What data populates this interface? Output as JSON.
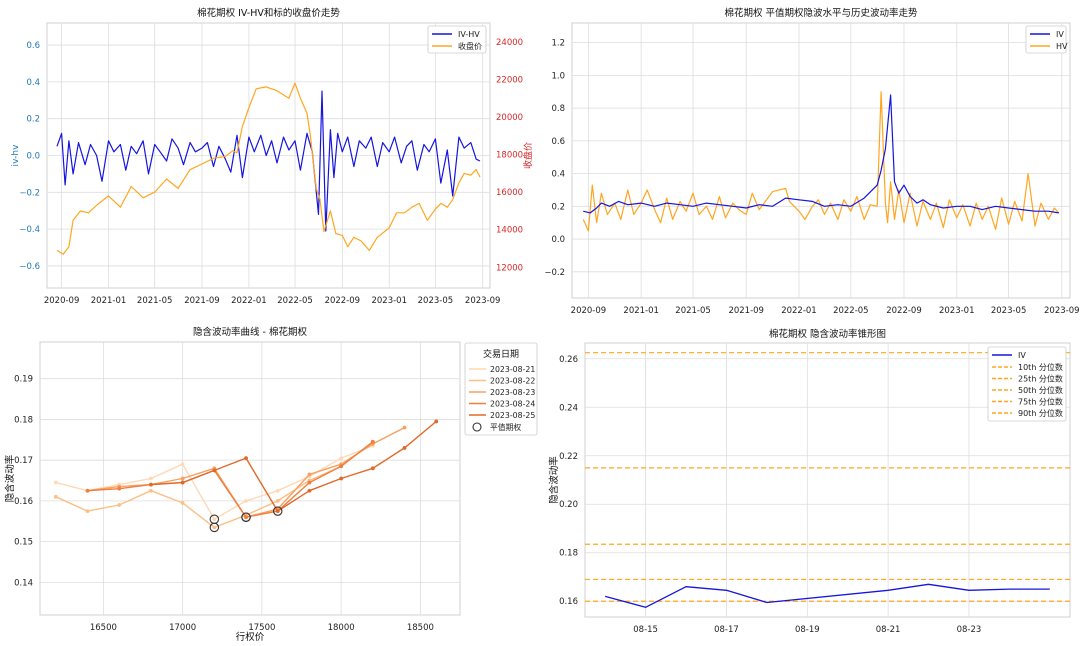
{
  "chart_data": [
    {
      "type": "line",
      "title": "棉花期权 IV-HV和标的收盘价走势",
      "xlabel": "",
      "ylabel": "iv-hv",
      "y2label": "收盘价",
      "x_ticks": [
        "2020-09",
        "2021-01",
        "2021-05",
        "2021-09",
        "2022-01",
        "2022-05",
        "2022-09",
        "2023-01",
        "2023-05",
        "2023-09"
      ],
      "xlim": [
        "2020-07-25",
        "2023-09-20"
      ],
      "ylim": [
        -0.72,
        0.72
      ],
      "y_ticks": [
        -0.6,
        -0.4,
        -0.2,
        0.0,
        0.2,
        0.4,
        0.6
      ],
      "y2lim": [
        10900,
        25000
      ],
      "y2_ticks": [
        12000,
        14000,
        16000,
        18000,
        20000,
        22000,
        24000
      ],
      "legend": "top-right",
      "grid": true,
      "colors": {
        "iv_hv": "#1515e0",
        "close": "#ffa620",
        "right_axis": "#d62728",
        "left_axis": "#1f77b4"
      },
      "series": [
        {
          "name": "IV-HV",
          "axis": "left",
          "x": [
            "2020-08-20",
            "2020-09-01",
            "2020-09-10",
            "2020-09-20",
            "2020-10-01",
            "2020-10-15",
            "2020-11-01",
            "2020-11-15",
            "2020-12-01",
            "2020-12-15",
            "2021-01-01",
            "2021-01-15",
            "2021-02-01",
            "2021-02-15",
            "2021-03-01",
            "2021-03-15",
            "2021-04-01",
            "2021-04-15",
            "2021-05-01",
            "2021-05-15",
            "2021-06-01",
            "2021-06-15",
            "2021-07-01",
            "2021-07-15",
            "2021-08-01",
            "2021-08-15",
            "2021-09-01",
            "2021-09-15",
            "2021-10-01",
            "2021-10-15",
            "2021-11-01",
            "2021-11-15",
            "2021-12-01",
            "2021-12-15",
            "2022-01-01",
            "2022-01-15",
            "2022-02-01",
            "2022-02-15",
            "2022-03-01",
            "2022-03-15",
            "2022-04-01",
            "2022-04-15",
            "2022-05-01",
            "2022-05-15",
            "2022-06-01",
            "2022-06-15",
            "2022-07-01",
            "2022-07-10",
            "2022-07-20",
            "2022-08-01",
            "2022-08-10",
            "2022-08-20",
            "2022-09-01",
            "2022-09-15",
            "2022-10-01",
            "2022-10-15",
            "2022-11-01",
            "2022-11-15",
            "2022-12-01",
            "2022-12-15",
            "2023-01-01",
            "2023-01-15",
            "2023-02-01",
            "2023-02-15",
            "2023-03-01",
            "2023-03-15",
            "2023-04-01",
            "2023-04-15",
            "2023-05-01",
            "2023-05-15",
            "2023-06-01",
            "2023-06-15",
            "2023-07-01",
            "2023-07-15",
            "2023-08-01",
            "2023-08-15",
            "2023-08-25"
          ],
          "values": [
            0.05,
            0.12,
            -0.16,
            0.08,
            -0.1,
            0.07,
            -0.05,
            0.06,
            0.0,
            -0.14,
            0.08,
            0.02,
            0.06,
            -0.08,
            0.05,
            0.01,
            0.08,
            -0.1,
            0.06,
            0.02,
            -0.03,
            0.09,
            0.04,
            -0.05,
            0.07,
            0.02,
            0.04,
            0.07,
            -0.06,
            0.05,
            -0.02,
            -0.09,
            0.11,
            -0.12,
            0.1,
            0.02,
            0.11,
            0.0,
            0.08,
            -0.04,
            0.1,
            0.03,
            0.08,
            -0.08,
            0.12,
            0.02,
            -0.32,
            0.35,
            -0.41,
            0.14,
            -0.12,
            0.12,
            0.02,
            0.1,
            -0.06,
            0.08,
            0.04,
            0.1,
            -0.06,
            0.07,
            0.02,
            0.1,
            -0.04,
            0.05,
            0.08,
            -0.08,
            0.06,
            0.02,
            0.09,
            -0.15,
            0.03,
            -0.22,
            0.1,
            0.04,
            0.07,
            -0.02,
            -0.03
          ]
        },
        {
          "name": "收盘价",
          "axis": "right",
          "x": [
            "2020-08-20",
            "2020-09-05",
            "2020-09-20",
            "2020-10-01",
            "2020-10-20",
            "2020-11-10",
            "2020-12-01",
            "2021-01-01",
            "2021-02-01",
            "2021-03-01",
            "2021-04-01",
            "2021-05-01",
            "2021-06-01",
            "2021-07-01",
            "2021-08-01",
            "2021-09-01",
            "2021-10-01",
            "2021-11-01",
            "2021-11-20",
            "2021-12-01",
            "2021-12-15",
            "2022-01-01",
            "2022-01-20",
            "2022-02-15",
            "2022-03-15",
            "2022-04-15",
            "2022-05-01",
            "2022-05-15",
            "2022-06-01",
            "2022-06-10",
            "2022-06-25",
            "2022-07-05",
            "2022-07-15",
            "2022-08-01",
            "2022-08-15",
            "2022-09-01",
            "2022-09-15",
            "2022-10-01",
            "2022-10-20",
            "2022-11-10",
            "2022-12-01",
            "2023-01-01",
            "2023-01-20",
            "2023-02-10",
            "2023-03-01",
            "2023-03-20",
            "2023-04-10",
            "2023-05-01",
            "2023-05-15",
            "2023-06-01",
            "2023-06-15",
            "2023-07-01",
            "2023-07-15",
            "2023-08-01",
            "2023-08-15",
            "2023-08-25"
          ],
          "values": [
            12900,
            12700,
            13100,
            14500,
            15000,
            14900,
            15300,
            15800,
            15200,
            16300,
            15700,
            16000,
            16700,
            16200,
            17200,
            17500,
            17800,
            17900,
            18200,
            18100,
            19500,
            20500,
            21500,
            21600,
            21400,
            21000,
            21800,
            21000,
            20200,
            19000,
            16200,
            15600,
            13900,
            15000,
            13800,
            13700,
            13100,
            13600,
            13400,
            12900,
            13600,
            14100,
            14900,
            14900,
            15200,
            15400,
            14500,
            15100,
            15400,
            15200,
            15600,
            16500,
            17000,
            16900,
            17200,
            16800
          ]
        }
      ]
    },
    {
      "type": "line",
      "title": "棉花期权 平值期权隐波水平与历史波动率走势",
      "xlabel": "",
      "ylabel": "",
      "x_ticks": [
        "2020-09",
        "2021-01",
        "2021-05",
        "2021-09",
        "2022-01",
        "2022-05",
        "2022-09",
        "2023-01",
        "2023-05",
        "2023-09"
      ],
      "xlim": [
        "2020-07-25",
        "2023-09-20"
      ],
      "ylim": [
        -0.36,
        1.32
      ],
      "y_ticks": [
        -0.2,
        0.0,
        0.2,
        0.4,
        0.6,
        0.8,
        1.0,
        1.2
      ],
      "legend": "top-right",
      "grid": true,
      "series": [
        {
          "name": "IV",
          "color": "#1515e0",
          "x": [
            "2020-08-20",
            "2020-09-05",
            "2020-09-20",
            "2020-10-01",
            "2020-10-20",
            "2020-11-10",
            "2020-12-01",
            "2021-01-01",
            "2021-02-01",
            "2021-03-01",
            "2021-04-01",
            "2021-05-01",
            "2021-06-01",
            "2021-07-01",
            "2021-08-01",
            "2021-09-01",
            "2021-10-01",
            "2021-11-01",
            "2021-12-01",
            "2022-01-01",
            "2022-02-01",
            "2022-03-01",
            "2022-04-01",
            "2022-05-01",
            "2022-06-01",
            "2022-07-01",
            "2022-07-10",
            "2022-07-20",
            "2022-08-01",
            "2022-08-10",
            "2022-08-20",
            "2022-09-01",
            "2022-09-15",
            "2022-10-01",
            "2022-10-15",
            "2022-11-01",
            "2022-12-01",
            "2023-01-01",
            "2023-02-01",
            "2023-03-01",
            "2023-04-01",
            "2023-05-01",
            "2023-06-01",
            "2023-07-01",
            "2023-08-01",
            "2023-08-25"
          ],
          "values": [
            0.17,
            0.16,
            0.19,
            0.22,
            0.2,
            0.23,
            0.21,
            0.22,
            0.2,
            0.22,
            0.21,
            0.2,
            0.22,
            0.21,
            0.2,
            0.19,
            0.21,
            0.2,
            0.25,
            0.24,
            0.23,
            0.2,
            0.21,
            0.2,
            0.25,
            0.33,
            0.42,
            0.55,
            0.88,
            0.35,
            0.28,
            0.33,
            0.26,
            0.22,
            0.24,
            0.21,
            0.19,
            0.2,
            0.2,
            0.18,
            0.2,
            0.19,
            0.18,
            0.17,
            0.17,
            0.16
          ]
        },
        {
          "name": "HV",
          "color": "#ffa620",
          "x": [
            "2020-08-20",
            "2020-09-01",
            "2020-09-10",
            "2020-09-20",
            "2020-10-01",
            "2020-10-15",
            "2020-11-01",
            "2020-11-15",
            "2020-12-01",
            "2020-12-15",
            "2021-01-01",
            "2021-01-15",
            "2021-02-01",
            "2021-02-15",
            "2021-03-01",
            "2021-03-15",
            "2021-04-01",
            "2021-04-15",
            "2021-05-01",
            "2021-05-15",
            "2021-06-01",
            "2021-06-15",
            "2021-07-01",
            "2021-07-15",
            "2021-08-01",
            "2021-08-15",
            "2021-09-01",
            "2021-09-15",
            "2021-10-01",
            "2021-11-01",
            "2021-12-01",
            "2021-12-10",
            "2022-01-01",
            "2022-01-15",
            "2022-02-01",
            "2022-02-15",
            "2022-03-01",
            "2022-03-15",
            "2022-04-01",
            "2022-04-15",
            "2022-05-01",
            "2022-05-15",
            "2022-06-01",
            "2022-06-15",
            "2022-07-01",
            "2022-07-10",
            "2022-07-20",
            "2022-07-25",
            "2022-08-01",
            "2022-08-10",
            "2022-08-20",
            "2022-09-01",
            "2022-09-15",
            "2022-10-01",
            "2022-10-15",
            "2022-11-01",
            "2022-11-15",
            "2022-12-01",
            "2022-12-15",
            "2023-01-01",
            "2023-01-15",
            "2023-02-01",
            "2023-02-15",
            "2023-03-01",
            "2023-03-15",
            "2023-04-01",
            "2023-04-15",
            "2023-05-01",
            "2023-05-15",
            "2023-06-01",
            "2023-06-15",
            "2023-07-01",
            "2023-07-15",
            "2023-08-01",
            "2023-08-15",
            "2023-08-25"
          ],
          "values": [
            0.12,
            0.05,
            0.33,
            0.1,
            0.28,
            0.15,
            0.22,
            0.12,
            0.3,
            0.15,
            0.22,
            0.3,
            0.18,
            0.1,
            0.25,
            0.12,
            0.23,
            0.17,
            0.28,
            0.15,
            0.2,
            0.12,
            0.26,
            0.13,
            0.22,
            0.18,
            0.15,
            0.28,
            0.18,
            0.29,
            0.31,
            0.23,
            0.17,
            0.12,
            0.2,
            0.24,
            0.15,
            0.22,
            0.12,
            0.24,
            0.17,
            0.26,
            0.12,
            0.21,
            0.2,
            0.9,
            0.22,
            0.1,
            0.35,
            0.12,
            0.3,
            0.1,
            0.28,
            0.08,
            0.23,
            0.12,
            0.22,
            0.07,
            0.24,
            0.13,
            0.21,
            0.08,
            0.22,
            0.12,
            0.2,
            0.06,
            0.25,
            0.09,
            0.23,
            0.11,
            0.4,
            0.08,
            0.22,
            0.12,
            0.19,
            0.16
          ]
        }
      ]
    },
    {
      "type": "line",
      "title": "隐含波动率曲线 - 棉花期权",
      "xlabel": "行权价",
      "ylabel": "隐含波动率",
      "xlim": [
        16100,
        18750
      ],
      "x_ticks": [
        16500,
        17000,
        17500,
        18000,
        18500
      ],
      "ylim": [
        0.132,
        0.199
      ],
      "y_ticks": [
        0.14,
        0.15,
        0.16,
        0.17,
        0.18,
        0.19
      ],
      "legend_title": "交易日期",
      "legend": "upper-right-outside",
      "grid": true,
      "atm_label": "平值期权",
      "series": [
        {
          "name": "2023-08-21",
          "color": "#fdd9b5",
          "x": [
            16200,
            16400,
            16600,
            16800,
            17000,
            17200,
            17400,
            17600,
            17800,
            18000,
            18200
          ],
          "values": [
            0.1645,
            0.1625,
            0.164,
            0.1655,
            0.169,
            0.1555,
            0.16,
            0.1625,
            0.166,
            0.1705,
            0.1735
          ],
          "atm": [
            17200,
            0.1555
          ]
        },
        {
          "name": "2023-08-22",
          "color": "#fcbf85",
          "x": [
            16200,
            16400,
            16600,
            16800,
            17000,
            17200,
            17400,
            17600,
            17800,
            18000,
            18200
          ],
          "values": [
            0.161,
            0.1575,
            0.159,
            0.1625,
            0.1595,
            0.1535,
            0.1565,
            0.16,
            0.165,
            0.1685,
            0.1745
          ],
          "atm": [
            17200,
            0.1535
          ]
        },
        {
          "name": "2023-08-23",
          "color": "#f8a060",
          "x": [
            16400,
            16600,
            16800,
            17000,
            17200,
            17400,
            17600,
            17800,
            18000,
            18200,
            18400
          ],
          "values": [
            0.1625,
            0.1635,
            0.164,
            0.1655,
            0.168,
            0.156,
            0.158,
            0.1665,
            0.169,
            0.174,
            0.178
          ],
          "atm": [
            17400,
            0.156
          ]
        },
        {
          "name": "2023-08-24",
          "color": "#ef7f3f",
          "x": [
            16400,
            16600,
            16800,
            17000,
            17200,
            17400,
            17600,
            17800,
            18000,
            18200
          ],
          "values": [
            0.1625,
            0.163,
            0.164,
            0.1645,
            0.1675,
            0.156,
            0.1575,
            0.1645,
            0.1685,
            0.1745
          ],
          "atm": [
            17400,
            0.156
          ]
        },
        {
          "name": "2023-08-25",
          "color": "#e0692a",
          "x": [
            16800,
            17000,
            17200,
            17400,
            17600,
            17800,
            18000,
            18200,
            18400,
            18600
          ],
          "values": [
            0.164,
            0.1645,
            0.1675,
            0.1705,
            0.1575,
            0.1625,
            0.1655,
            0.168,
            0.173,
            0.1795
          ],
          "atm": [
            17600,
            0.1575
          ]
        }
      ]
    },
    {
      "type": "line",
      "title": "棉花期权 隐含波动率锥形图",
      "xlabel": "",
      "ylabel": "隐含波动率",
      "xlim": [
        "2023-08-13 12:00",
        "2023-08-25 12:00"
      ],
      "x_ticks": [
        "08-15",
        "08-17",
        "08-19",
        "08-21",
        "08-23"
      ],
      "ylim": [
        0.1535,
        0.2665
      ],
      "y_ticks": [
        0.16,
        0.18,
        0.2,
        0.22,
        0.24,
        0.26
      ],
      "legend": "top-right",
      "grid": true,
      "series": [
        {
          "name": "IV",
          "color": "#1515e0",
          "x": [
            "2023-08-14",
            "2023-08-15",
            "2023-08-16",
            "2023-08-17",
            "2023-08-18",
            "2023-08-21",
            "2023-08-22",
            "2023-08-23",
            "2023-08-24",
            "2023-08-25"
          ],
          "values": [
            0.162,
            0.1575,
            0.166,
            0.1645,
            0.1595,
            0.1645,
            0.167,
            0.1645,
            0.165,
            0.165
          ]
        }
      ],
      "hlines": [
        {
          "name": "10th 分位数",
          "value": 0.16,
          "color": "#ffa620"
        },
        {
          "name": "25th 分位数",
          "value": 0.169,
          "color": "#ffa620"
        },
        {
          "name": "50th 分位数",
          "value": 0.1835,
          "color": "#ffa620"
        },
        {
          "name": "75th 分位数",
          "value": 0.215,
          "color": "#ffa620"
        },
        {
          "name": "90th 分位数",
          "value": 0.2625,
          "color": "#ffa620"
        }
      ]
    }
  ]
}
